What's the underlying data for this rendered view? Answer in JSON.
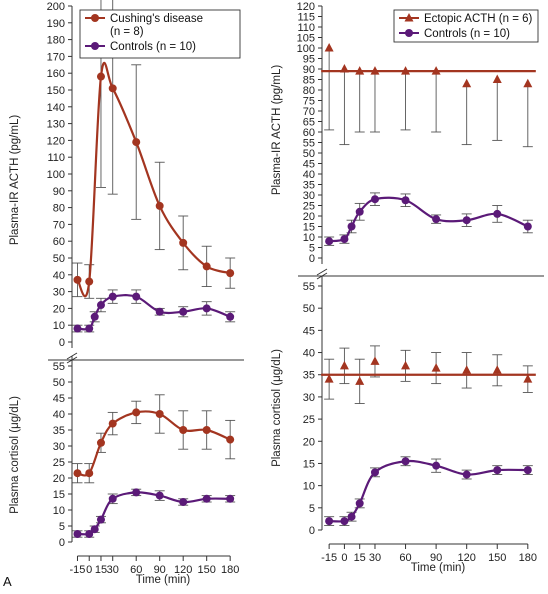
{
  "figure": {
    "panel_label": "A"
  },
  "colors": {
    "cushing": "#a33520",
    "ectopic": "#a33520",
    "controls": "#5b1a78",
    "axis": "#333333",
    "error": "#555555"
  },
  "chart_data": [
    {
      "id": "left-acth",
      "type": "line",
      "xlabel": "Time (min)",
      "ylabel": "Plasma-IR ACTH (pg/mL)",
      "xlim": [
        -22,
        190
      ],
      "ylim": [
        0,
        200
      ],
      "x_ticks": [],
      "y_ticks": [
        0,
        10,
        20,
        30,
        40,
        50,
        60,
        70,
        80,
        90,
        100,
        110,
        120,
        130,
        140,
        150,
        160,
        170,
        180,
        190,
        200
      ],
      "legend": {
        "placement": "top-right"
      },
      "series": [
        {
          "key": "cushing",
          "name": "Cushing's disease",
          "name_line2": "(n = 8)",
          "marker": "circle",
          "points": [
            {
              "x": -15,
              "y": 37,
              "err": 10
            },
            {
              "x": 0,
              "y": 36,
              "err": 10
            },
            {
              "x": 15,
              "y": 158,
              "err": 66
            },
            {
              "x": 30,
              "y": 151,
              "err": 63
            },
            {
              "x": 60,
              "y": 119,
              "err": 46
            },
            {
              "x": 90,
              "y": 81,
              "err": 26
            },
            {
              "x": 120,
              "y": 59,
              "err": 16
            },
            {
              "x": 150,
              "y": 45,
              "err": 12
            },
            {
              "x": 180,
              "y": 41,
              "err": 9
            }
          ]
        },
        {
          "key": "controls",
          "name": "Controls (n = 10)",
          "marker": "circle",
          "points": [
            {
              "x": -15,
              "y": 8,
              "err": 2
            },
            {
              "x": 0,
              "y": 8,
              "err": 2
            },
            {
              "x": 7,
              "y": 15,
              "err": 3
            },
            {
              "x": 15,
              "y": 22,
              "err": 4
            },
            {
              "x": 30,
              "y": 27,
              "err": 4
            },
            {
              "x": 60,
              "y": 27,
              "err": 4
            },
            {
              "x": 90,
              "y": 18,
              "err": 2
            },
            {
              "x": 120,
              "y": 18,
              "err": 3
            },
            {
              "x": 150,
              "y": 20,
              "err": 4
            },
            {
              "x": 180,
              "y": 15,
              "err": 3
            }
          ]
        }
      ]
    },
    {
      "id": "left-cortisol",
      "type": "line",
      "xlabel": "Time (min)",
      "ylabel": "Plasma cortisol (μg/dL)",
      "xlim": [
        -22,
        190
      ],
      "ylim": [
        0,
        55
      ],
      "x_ticks": [
        -15,
        0,
        15,
        30,
        60,
        90,
        120,
        150,
        180
      ],
      "y_ticks": [
        0,
        5,
        10,
        15,
        20,
        25,
        30,
        35,
        40,
        45,
        50,
        55
      ],
      "series": [
        {
          "key": "cushing",
          "marker": "circle",
          "points": [
            {
              "x": -15,
              "y": 21.5,
              "err": 3
            },
            {
              "x": 0,
              "y": 21.5,
              "err": 3
            },
            {
              "x": 15,
              "y": 31,
              "err": 3
            },
            {
              "x": 30,
              "y": 37,
              "err": 3.5
            },
            {
              "x": 60,
              "y": 40.5,
              "err": 3.5
            },
            {
              "x": 90,
              "y": 40,
              "err": 6
            },
            {
              "x": 120,
              "y": 35,
              "err": 6
            },
            {
              "x": 150,
              "y": 35,
              "err": 6
            },
            {
              "x": 180,
              "y": 32,
              "err": 6
            }
          ]
        },
        {
          "key": "controls",
          "marker": "circle",
          "points": [
            {
              "x": -15,
              "y": 2.5,
              "err": 1
            },
            {
              "x": 0,
              "y": 2.5,
              "err": 1
            },
            {
              "x": 7,
              "y": 4,
              "err": 1
            },
            {
              "x": 15,
              "y": 7,
              "err": 1
            },
            {
              "x": 30,
              "y": 13.5,
              "err": 1.5
            },
            {
              "x": 60,
              "y": 15.5,
              "err": 1
            },
            {
              "x": 90,
              "y": 14.5,
              "err": 1.5
            },
            {
              "x": 120,
              "y": 12.5,
              "err": 1
            },
            {
              "x": 150,
              "y": 13.5,
              "err": 1
            },
            {
              "x": 180,
              "y": 13.5,
              "err": 1
            }
          ]
        }
      ]
    },
    {
      "id": "right-acth",
      "type": "line",
      "xlabel": "Time (min)",
      "ylabel": "Plasma-IR ACTH (pg/mL)",
      "xlim": [
        -22,
        190
      ],
      "ylim": [
        0,
        120
      ],
      "x_ticks": [],
      "y_ticks": [
        0,
        5,
        10,
        15,
        20,
        25,
        30,
        35,
        40,
        45,
        50,
        55,
        60,
        65,
        70,
        75,
        80,
        85,
        90,
        95,
        100,
        105,
        110,
        115,
        120
      ],
      "legend": {
        "placement": "top-right"
      },
      "series": [
        {
          "key": "ectopic",
          "name": "Ectopic ACTH (n = 6)",
          "marker": "triangle",
          "mean_line": 89,
          "points": [
            {
              "x": -15,
              "y": 100,
              "err_low": 39
            },
            {
              "x": 0,
              "y": 90,
              "err_low": 36
            },
            {
              "x": 15,
              "y": 89,
              "err_low": 29
            },
            {
              "x": 30,
              "y": 89,
              "err_low": 29
            },
            {
              "x": 60,
              "y": 89,
              "err_low": 28
            },
            {
              "x": 90,
              "y": 89,
              "err_low": 29
            },
            {
              "x": 120,
              "y": 83,
              "err_low": 29
            },
            {
              "x": 150,
              "y": 85,
              "err_low": 29
            },
            {
              "x": 180,
              "y": 83,
              "err_low": 30
            }
          ]
        },
        {
          "key": "controls",
          "name": "Controls (n = 10)",
          "marker": "circle",
          "points": [
            {
              "x": -15,
              "y": 8,
              "err": 2
            },
            {
              "x": 0,
              "y": 9,
              "err": 2
            },
            {
              "x": 7,
              "y": 15,
              "err": 3
            },
            {
              "x": 15,
              "y": 22,
              "err": 4
            },
            {
              "x": 30,
              "y": 28,
              "err": 3
            },
            {
              "x": 60,
              "y": 27.5,
              "err": 3
            },
            {
              "x": 90,
              "y": 18.5,
              "err": 2
            },
            {
              "x": 120,
              "y": 18,
              "err": 3
            },
            {
              "x": 150,
              "y": 21,
              "err": 4
            },
            {
              "x": 180,
              "y": 15,
              "err": 3
            }
          ]
        }
      ]
    },
    {
      "id": "right-cortisol",
      "type": "line",
      "xlabel": "Time (min)",
      "ylabel": "Plasma cortisol (μg/dL)",
      "xlim": [
        -22,
        190
      ],
      "ylim": [
        0,
        55
      ],
      "x_ticks": [
        -15,
        0,
        15,
        30,
        60,
        90,
        120,
        150,
        180
      ],
      "y_ticks": [
        0,
        5,
        10,
        15,
        20,
        25,
        30,
        35,
        40,
        45,
        50,
        55
      ],
      "series": [
        {
          "key": "ectopic",
          "marker": "triangle",
          "mean_line": 35,
          "points": [
            {
              "x": -15,
              "y": 34,
              "err": 4.5
            },
            {
              "x": 0,
              "y": 37,
              "err": 4
            },
            {
              "x": 15,
              "y": 33.5,
              "err": 5
            },
            {
              "x": 30,
              "y": 38,
              "err": 3.5
            },
            {
              "x": 60,
              "y": 37,
              "err": 3.5
            },
            {
              "x": 90,
              "y": 36.5,
              "err": 3.5
            },
            {
              "x": 120,
              "y": 36,
              "err": 4
            },
            {
              "x": 150,
              "y": 36,
              "err": 3.5
            },
            {
              "x": 180,
              "y": 34,
              "err": 3
            }
          ]
        },
        {
          "key": "controls",
          "marker": "circle",
          "points": [
            {
              "x": -15,
              "y": 2,
              "err": 1
            },
            {
              "x": 0,
              "y": 2,
              "err": 1
            },
            {
              "x": 7,
              "y": 3,
              "err": 1
            },
            {
              "x": 15,
              "y": 6,
              "err": 1
            },
            {
              "x": 30,
              "y": 13,
              "err": 1
            },
            {
              "x": 60,
              "y": 15.5,
              "err": 1
            },
            {
              "x": 90,
              "y": 14.5,
              "err": 1.5
            },
            {
              "x": 120,
              "y": 12.5,
              "err": 1
            },
            {
              "x": 150,
              "y": 13.5,
              "err": 1
            },
            {
              "x": 180,
              "y": 13.5,
              "err": 1
            }
          ]
        }
      ]
    }
  ]
}
